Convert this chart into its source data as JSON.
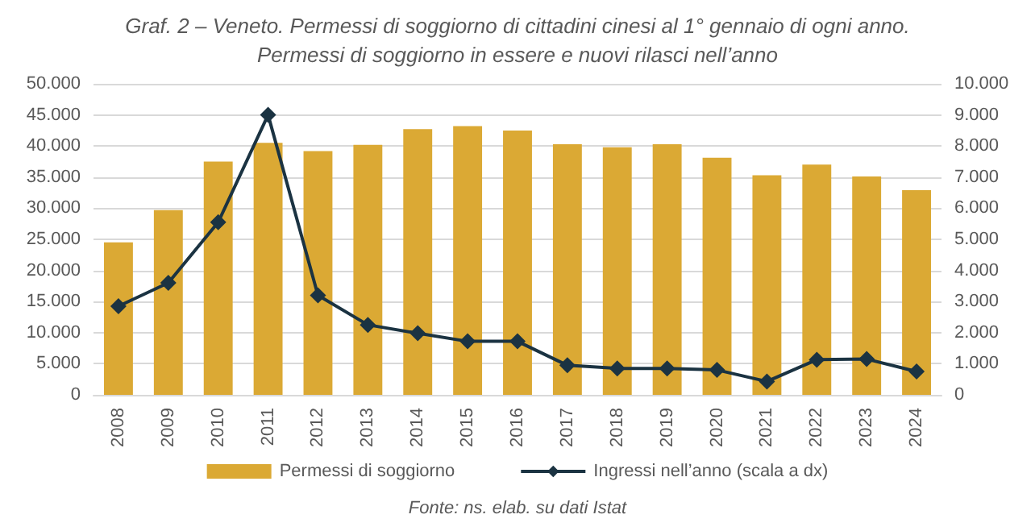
{
  "chart_data": {
    "type": "bar",
    "title": "Graf. 2 – Veneto. Permessi di soggiorno di cittadini cinesi al 1° gennaio di ogni anno.\nPermessi di soggiorno in essere e nuovi rilasci nell’anno",
    "categories": [
      "2008",
      "2009",
      "2010",
      "2011",
      "2012",
      "2013",
      "2014",
      "2015",
      "2016",
      "2017",
      "2018",
      "2019",
      "2020",
      "2021",
      "2022",
      "2023",
      "2024"
    ],
    "series": [
      {
        "name": "Permessi di soggiorno",
        "color": "#dba934",
        "values": [
          24500,
          29700,
          37500,
          40500,
          39200,
          40200,
          42700,
          43200,
          42500,
          40300,
          39800,
          40300,
          38100,
          35300,
          37000,
          35100,
          32900
        ]
      },
      {
        "name": "Ingressi nell’anno (scala a dx)",
        "type": "line",
        "axis": "y2",
        "color": "#1b3342",
        "marker": "diamond",
        "values": [
          2850,
          3600,
          5550,
          9000,
          3200,
          2250,
          1980,
          1720,
          1720,
          950,
          850,
          850,
          800,
          430,
          1130,
          1150,
          750
        ]
      }
    ],
    "ylim": [
      0,
      50000
    ],
    "yticks": [
      {
        "value": 0,
        "label": "0"
      },
      {
        "value": 5000,
        "label": "5.000"
      },
      {
        "value": 10000,
        "label": "10.000"
      },
      {
        "value": 15000,
        "label": "15.000"
      },
      {
        "value": 20000,
        "label": "20.000"
      },
      {
        "value": 25000,
        "label": "25.000"
      },
      {
        "value": 30000,
        "label": "30.000"
      },
      {
        "value": 35000,
        "label": "35.000"
      },
      {
        "value": 40000,
        "label": "40.000"
      },
      {
        "value": 45000,
        "label": "45.000"
      },
      {
        "value": 50000,
        "label": "50.000"
      }
    ],
    "y2lim": [
      0,
      10000
    ],
    "y2ticks": [
      {
        "value": 0,
        "label": "0"
      },
      {
        "value": 1000,
        "label": "1.000"
      },
      {
        "value": 2000,
        "label": "2.000"
      },
      {
        "value": 3000,
        "label": "3.000"
      },
      {
        "value": 4000,
        "label": "4.000"
      },
      {
        "value": 5000,
        "label": "5.000"
      },
      {
        "value": 6000,
        "label": "6.000"
      },
      {
        "value": 7000,
        "label": "7.000"
      },
      {
        "value": 8000,
        "label": "8.000"
      },
      {
        "value": 9000,
        "label": "9.000"
      },
      {
        "value": 10000,
        "label": "10.000"
      }
    ],
    "grid": "y",
    "legend": "bottom",
    "annotations": [
      "Fonte: ns. elab. su dati Istat"
    ]
  }
}
